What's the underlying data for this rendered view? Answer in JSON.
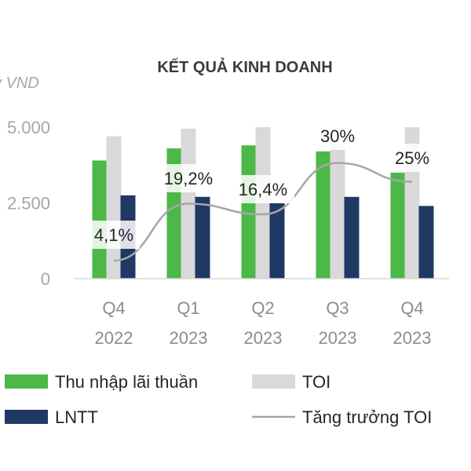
{
  "chart_data": {
    "type": "bar",
    "title": "KẾT QUẢ KINH DOANH",
    "unit_label": "ỷ VND",
    "categories": [
      [
        "Q4",
        "2022"
      ],
      [
        "Q1",
        "2023"
      ],
      [
        "Q2",
        "2023"
      ],
      [
        "Q3",
        "2023"
      ],
      [
        "Q4",
        "2023"
      ]
    ],
    "ylim": [
      0,
      5000
    ],
    "yticks": [
      {
        "value": 0,
        "label": "0"
      },
      {
        "value": 2500,
        "label": "2.500"
      },
      {
        "value": 5000,
        "label": "5.000"
      }
    ],
    "series": [
      {
        "name": "Thu nhập lãi thuần",
        "type": "bar",
        "color": "#4db748",
        "values": [
          3900,
          4300,
          4400,
          4200,
          3500
        ]
      },
      {
        "name": "TOI",
        "type": "bar",
        "color": "#d9d9d9",
        "values": [
          4700,
          4950,
          5000,
          4450,
          5000
        ]
      },
      {
        "name": "LNTT",
        "type": "bar",
        "color": "#1f3864",
        "values": [
          2750,
          2700,
          2500,
          2700,
          2400
        ]
      },
      {
        "name": "Tăng trưởng TOI",
        "type": "line",
        "color": "#a6a6a6",
        "values": [
          4.1,
          19.2,
          16.4,
          30,
          25
        ],
        "labels": [
          "4,1%",
          "19,2%",
          "16,4%",
          "30%",
          "25%"
        ]
      }
    ],
    "grid": false,
    "legend_position": "bottom"
  }
}
